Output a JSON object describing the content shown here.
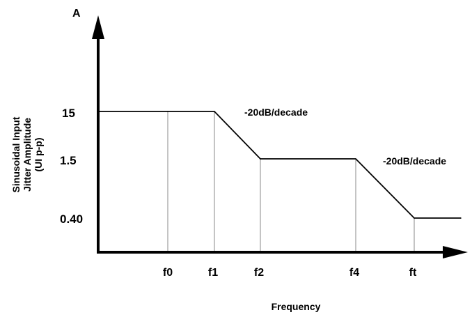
{
  "chart_data": {
    "type": "line",
    "title": "",
    "xlabel": "Frequency",
    "ylabel": "Sinusoidal Input Jitter Amplitude (UI p-p)",
    "ylabel_lines": [
      "Sinusoidal Input",
      "Jitter Amplitude",
      "(UI p-p)"
    ],
    "y_axis_top_label": "A",
    "y_scale": "log",
    "x_ticks": [
      "f0",
      "f1",
      "f2",
      "f4",
      "ft"
    ],
    "y_ticks": [
      "15",
      "1.5",
      "0.40"
    ],
    "series": [
      {
        "x": [
          "start",
          "f0",
          "f1",
          "f2",
          "f4",
          "ft",
          "end"
        ],
        "y": [
          15,
          15,
          15,
          1.5,
          1.5,
          0.4,
          0.4
        ]
      }
    ],
    "annotations": [
      "-20dB/decade",
      "-20dB/decade"
    ],
    "grid": false,
    "line_color": "#000000",
    "dropline_color": "#b0b0b0"
  }
}
